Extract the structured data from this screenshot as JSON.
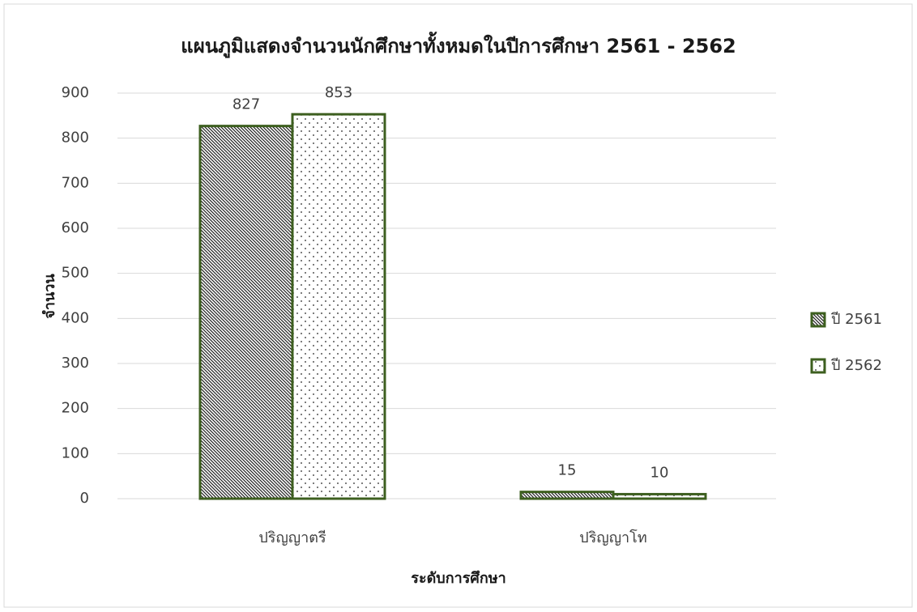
{
  "chart_data": {
    "type": "bar",
    "title": "แผนภูมิแสดงจำนวนนักศึกษาทั้งหมดในปีการศึกษา 2561 - 2562",
    "x_label": "ระดับการศึกษา",
    "y_label": "จำนวน",
    "categories": [
      "ปริญญาตรี",
      "ปริญญาโท"
    ],
    "series": [
      {
        "name": "ปี 2561",
        "color": "#3d5f1f",
        "pattern": "diagonal",
        "values": [
          827,
          15
        ]
      },
      {
        "name": "ปี 2562",
        "color": "#3d5f1f",
        "pattern": "dots",
        "values": [
          853,
          10
        ]
      }
    ],
    "ylim": [
      0,
      900
    ],
    "yticks": [
      0,
      100,
      200,
      300,
      400,
      500,
      600,
      700,
      800,
      900
    ],
    "grid": true,
    "legend": "right"
  }
}
